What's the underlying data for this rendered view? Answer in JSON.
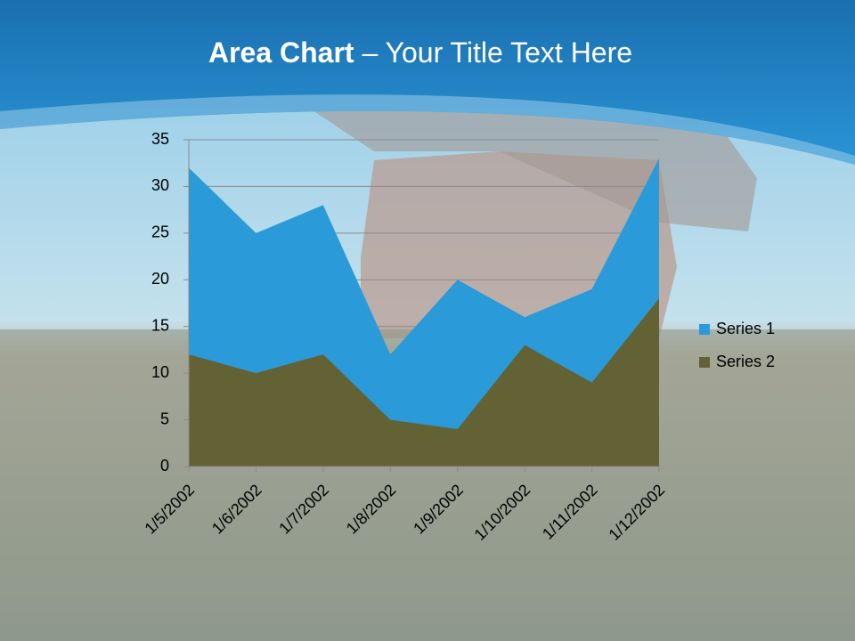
{
  "chart_data": {
    "type": "area",
    "title": [
      "Area Chart",
      "– Your Title Text Here"
    ],
    "categories": [
      "1/5/2002",
      "1/6/2002",
      "1/7/2002",
      "1/8/2002",
      "1/9/2002",
      "1/10/2002",
      "1/11/2002",
      "1/12/2002"
    ],
    "series": [
      {
        "name": "Series 1",
        "color": "#2a9ad8",
        "values": [
          32,
          25,
          28,
          12,
          20,
          16,
          19,
          33
        ]
      },
      {
        "name": "Series 2",
        "color": "#636234",
        "values": [
          12,
          10,
          12,
          5,
          4,
          13,
          9,
          18
        ]
      }
    ],
    "ylim": [
      0,
      35
    ],
    "yticks": [
      0,
      5,
      10,
      15,
      20,
      25,
      30,
      35
    ],
    "grid": true,
    "legend": "right"
  }
}
